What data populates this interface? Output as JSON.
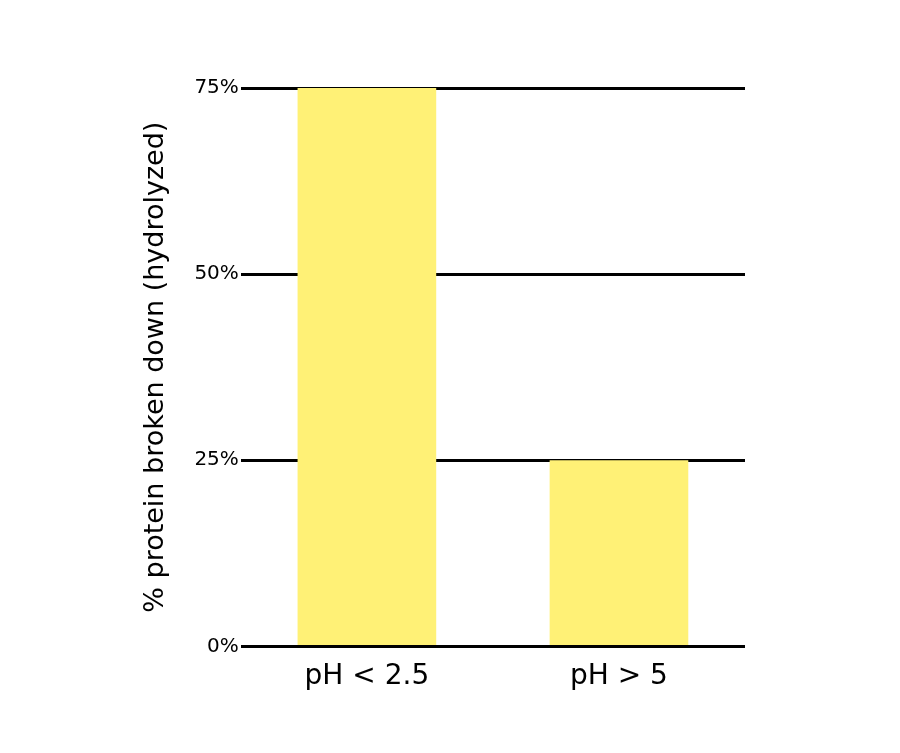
{
  "chart_data": {
    "type": "bar",
    "categories": [
      "pH < 2.5",
      "pH > 5"
    ],
    "values": [
      75,
      25
    ],
    "color": "#fff176",
    "ylabel": "% protein broken down (hydrolyzed)",
    "ylim": [
      0,
      75
    ],
    "yticks": [
      {
        "value": 0,
        "label": "0%"
      },
      {
        "value": 25,
        "label": "25%"
      },
      {
        "value": 50,
        "label": "50%"
      },
      {
        "value": 75,
        "label": "75%"
      }
    ],
    "grid": true
  }
}
